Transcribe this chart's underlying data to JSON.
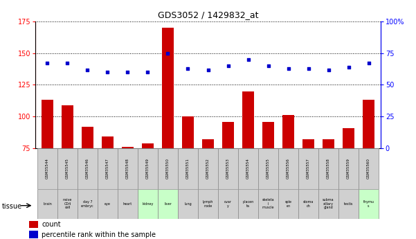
{
  "title": "GDS3052 / 1429832_at",
  "gsm_labels": [
    "GSM35544",
    "GSM35545",
    "GSM35546",
    "GSM35547",
    "GSM35548",
    "GSM35549",
    "GSM35550",
    "GSM35551",
    "GSM35552",
    "GSM35553",
    "GSM35554",
    "GSM35555",
    "GSM35556",
    "GSM35557",
    "GSM35558",
    "GSM35559",
    "GSM35560"
  ],
  "tissue_labels": [
    "brain",
    "naive\nCD4\ncell",
    "day 7\nembryc",
    "eye",
    "heart",
    "kidney",
    "liver",
    "lung",
    "lymph\nnode",
    "ovar\ny",
    "placen\nta",
    "skeleta\nl\nmuscle",
    "sple\nen",
    "stoma\nch",
    "subma\nxillary\ngland",
    "testis",
    "thymu\ns"
  ],
  "tissue_colors": [
    "#d0d0d0",
    "#d0d0d0",
    "#d0d0d0",
    "#d0d0d0",
    "#d0d0d0",
    "#c8ffc8",
    "#c8ffc8",
    "#d0d0d0",
    "#d0d0d0",
    "#d0d0d0",
    "#d0d0d0",
    "#d0d0d0",
    "#d0d0d0",
    "#d0d0d0",
    "#d0d0d0",
    "#d0d0d0",
    "#c8ffc8"
  ],
  "count_values": [
    113,
    109,
    92,
    84,
    76,
    79,
    170,
    100,
    82,
    96,
    120,
    96,
    101,
    82,
    82,
    91,
    113
  ],
  "percentile_values": [
    67,
    67,
    62,
    60,
    60,
    60,
    75,
    63,
    62,
    65,
    70,
    65,
    63,
    63,
    62,
    64,
    67
  ],
  "ylim_left": [
    75,
    175
  ],
  "ylim_right": [
    0,
    100
  ],
  "yticks_left": [
    75,
    100,
    125,
    150,
    175
  ],
  "yticks_right": [
    0,
    25,
    50,
    75,
    100
  ],
  "bar_color": "#cc0000",
  "dot_color": "#0000cc",
  "bg_color": "#ffffff",
  "gsm_box_color": "#d0d0d0"
}
